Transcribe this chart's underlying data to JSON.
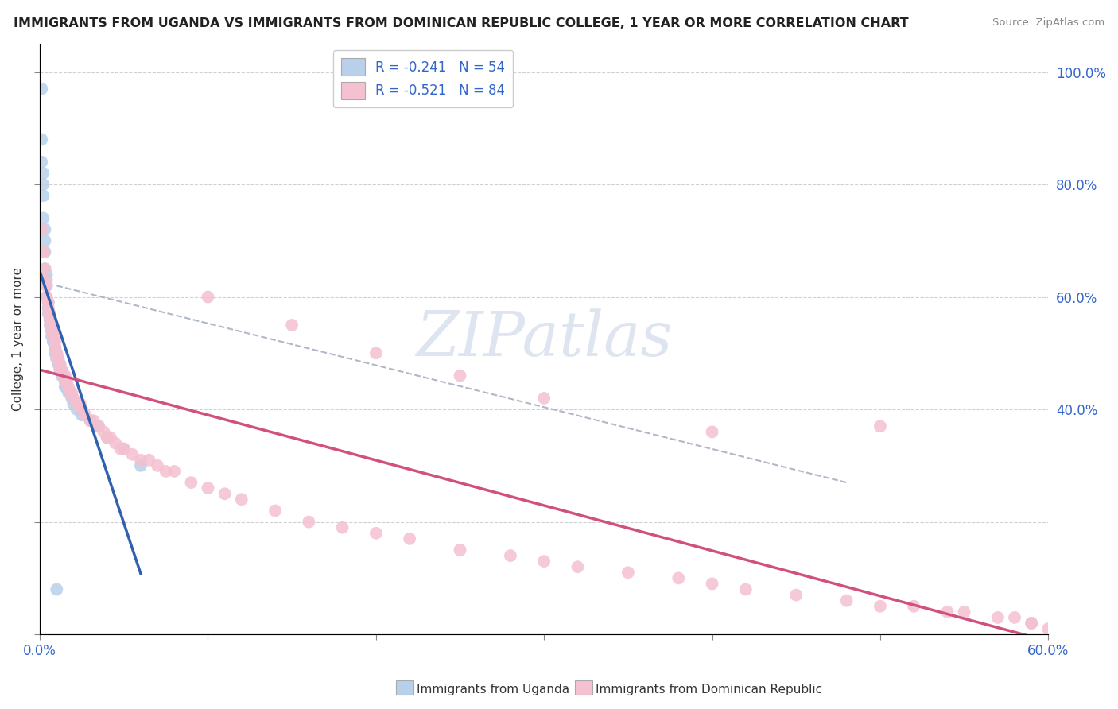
{
  "title": "IMMIGRANTS FROM UGANDA VS IMMIGRANTS FROM DOMINICAN REPUBLIC COLLEGE, 1 YEAR OR MORE CORRELATION CHART",
  "source": "Source: ZipAtlas.com",
  "ylabel": "College, 1 year or more",
  "bottom_legend_blue": "Immigrants from Uganda",
  "bottom_legend_pink": "Immigrants from Dominican Republic",
  "R_blue": -0.241,
  "N_blue": 54,
  "R_pink": -0.521,
  "N_pink": 84,
  "blue_color": "#b8d0ea",
  "blue_line_color": "#3060b0",
  "pink_color": "#f5c0d0",
  "pink_line_color": "#d05080",
  "dash_color": "#b0b8c8",
  "background_color": "#ffffff",
  "xlim": [
    0.0,
    0.6
  ],
  "ylim": [
    0.0,
    1.05
  ],
  "right_yticks": [
    1.0,
    0.8,
    0.6,
    0.4
  ],
  "right_yticklabels": [
    "100.0%",
    "80.0%",
    "60.0%",
    "40.0%"
  ],
  "blue_x": [
    0.001,
    0.001,
    0.001,
    0.002,
    0.002,
    0.002,
    0.002,
    0.003,
    0.003,
    0.003,
    0.003,
    0.004,
    0.004,
    0.004,
    0.004,
    0.005,
    0.005,
    0.005,
    0.006,
    0.006,
    0.006,
    0.007,
    0.007,
    0.007,
    0.008,
    0.008,
    0.009,
    0.009,
    0.009,
    0.01,
    0.01,
    0.01,
    0.011,
    0.011,
    0.012,
    0.012,
    0.013,
    0.013,
    0.014,
    0.015,
    0.015,
    0.016,
    0.017,
    0.018,
    0.019,
    0.02,
    0.022,
    0.025,
    0.03,
    0.035,
    0.04,
    0.05,
    0.06,
    0.01
  ],
  "blue_y": [
    0.97,
    0.88,
    0.84,
    0.82,
    0.8,
    0.78,
    0.74,
    0.72,
    0.7,
    0.68,
    0.65,
    0.64,
    0.63,
    0.62,
    0.6,
    0.59,
    0.58,
    0.57,
    0.56,
    0.56,
    0.55,
    0.54,
    0.54,
    0.53,
    0.52,
    0.52,
    0.51,
    0.51,
    0.5,
    0.5,
    0.5,
    0.49,
    0.49,
    0.48,
    0.48,
    0.47,
    0.47,
    0.46,
    0.46,
    0.45,
    0.44,
    0.44,
    0.43,
    0.43,
    0.42,
    0.41,
    0.4,
    0.39,
    0.38,
    0.37,
    0.35,
    0.33,
    0.3,
    0.08
  ],
  "pink_x": [
    0.001,
    0.002,
    0.003,
    0.003,
    0.004,
    0.004,
    0.005,
    0.005,
    0.006,
    0.006,
    0.007,
    0.007,
    0.008,
    0.008,
    0.009,
    0.009,
    0.01,
    0.01,
    0.011,
    0.012,
    0.012,
    0.013,
    0.014,
    0.015,
    0.015,
    0.016,
    0.017,
    0.018,
    0.019,
    0.02,
    0.022,
    0.024,
    0.025,
    0.027,
    0.03,
    0.032,
    0.035,
    0.038,
    0.04,
    0.042,
    0.045,
    0.048,
    0.05,
    0.055,
    0.06,
    0.065,
    0.07,
    0.075,
    0.08,
    0.09,
    0.1,
    0.11,
    0.12,
    0.14,
    0.16,
    0.18,
    0.2,
    0.22,
    0.25,
    0.28,
    0.3,
    0.32,
    0.35,
    0.38,
    0.4,
    0.42,
    0.45,
    0.48,
    0.5,
    0.52,
    0.54,
    0.55,
    0.57,
    0.58,
    0.59,
    0.59,
    0.6,
    0.1,
    0.15,
    0.2,
    0.25,
    0.3,
    0.4,
    0.5
  ],
  "pink_y": [
    0.72,
    0.68,
    0.65,
    0.63,
    0.62,
    0.6,
    0.59,
    0.58,
    0.57,
    0.56,
    0.55,
    0.54,
    0.54,
    0.53,
    0.52,
    0.51,
    0.5,
    0.49,
    0.49,
    0.48,
    0.47,
    0.47,
    0.46,
    0.46,
    0.45,
    0.45,
    0.44,
    0.43,
    0.43,
    0.42,
    0.41,
    0.41,
    0.4,
    0.39,
    0.38,
    0.38,
    0.37,
    0.36,
    0.35,
    0.35,
    0.34,
    0.33,
    0.33,
    0.32,
    0.31,
    0.31,
    0.3,
    0.29,
    0.29,
    0.27,
    0.26,
    0.25,
    0.24,
    0.22,
    0.2,
    0.19,
    0.18,
    0.17,
    0.15,
    0.14,
    0.13,
    0.12,
    0.11,
    0.1,
    0.09,
    0.08,
    0.07,
    0.06,
    0.05,
    0.05,
    0.04,
    0.04,
    0.03,
    0.03,
    0.02,
    0.02,
    0.01,
    0.6,
    0.55,
    0.5,
    0.46,
    0.42,
    0.36,
    0.37
  ]
}
